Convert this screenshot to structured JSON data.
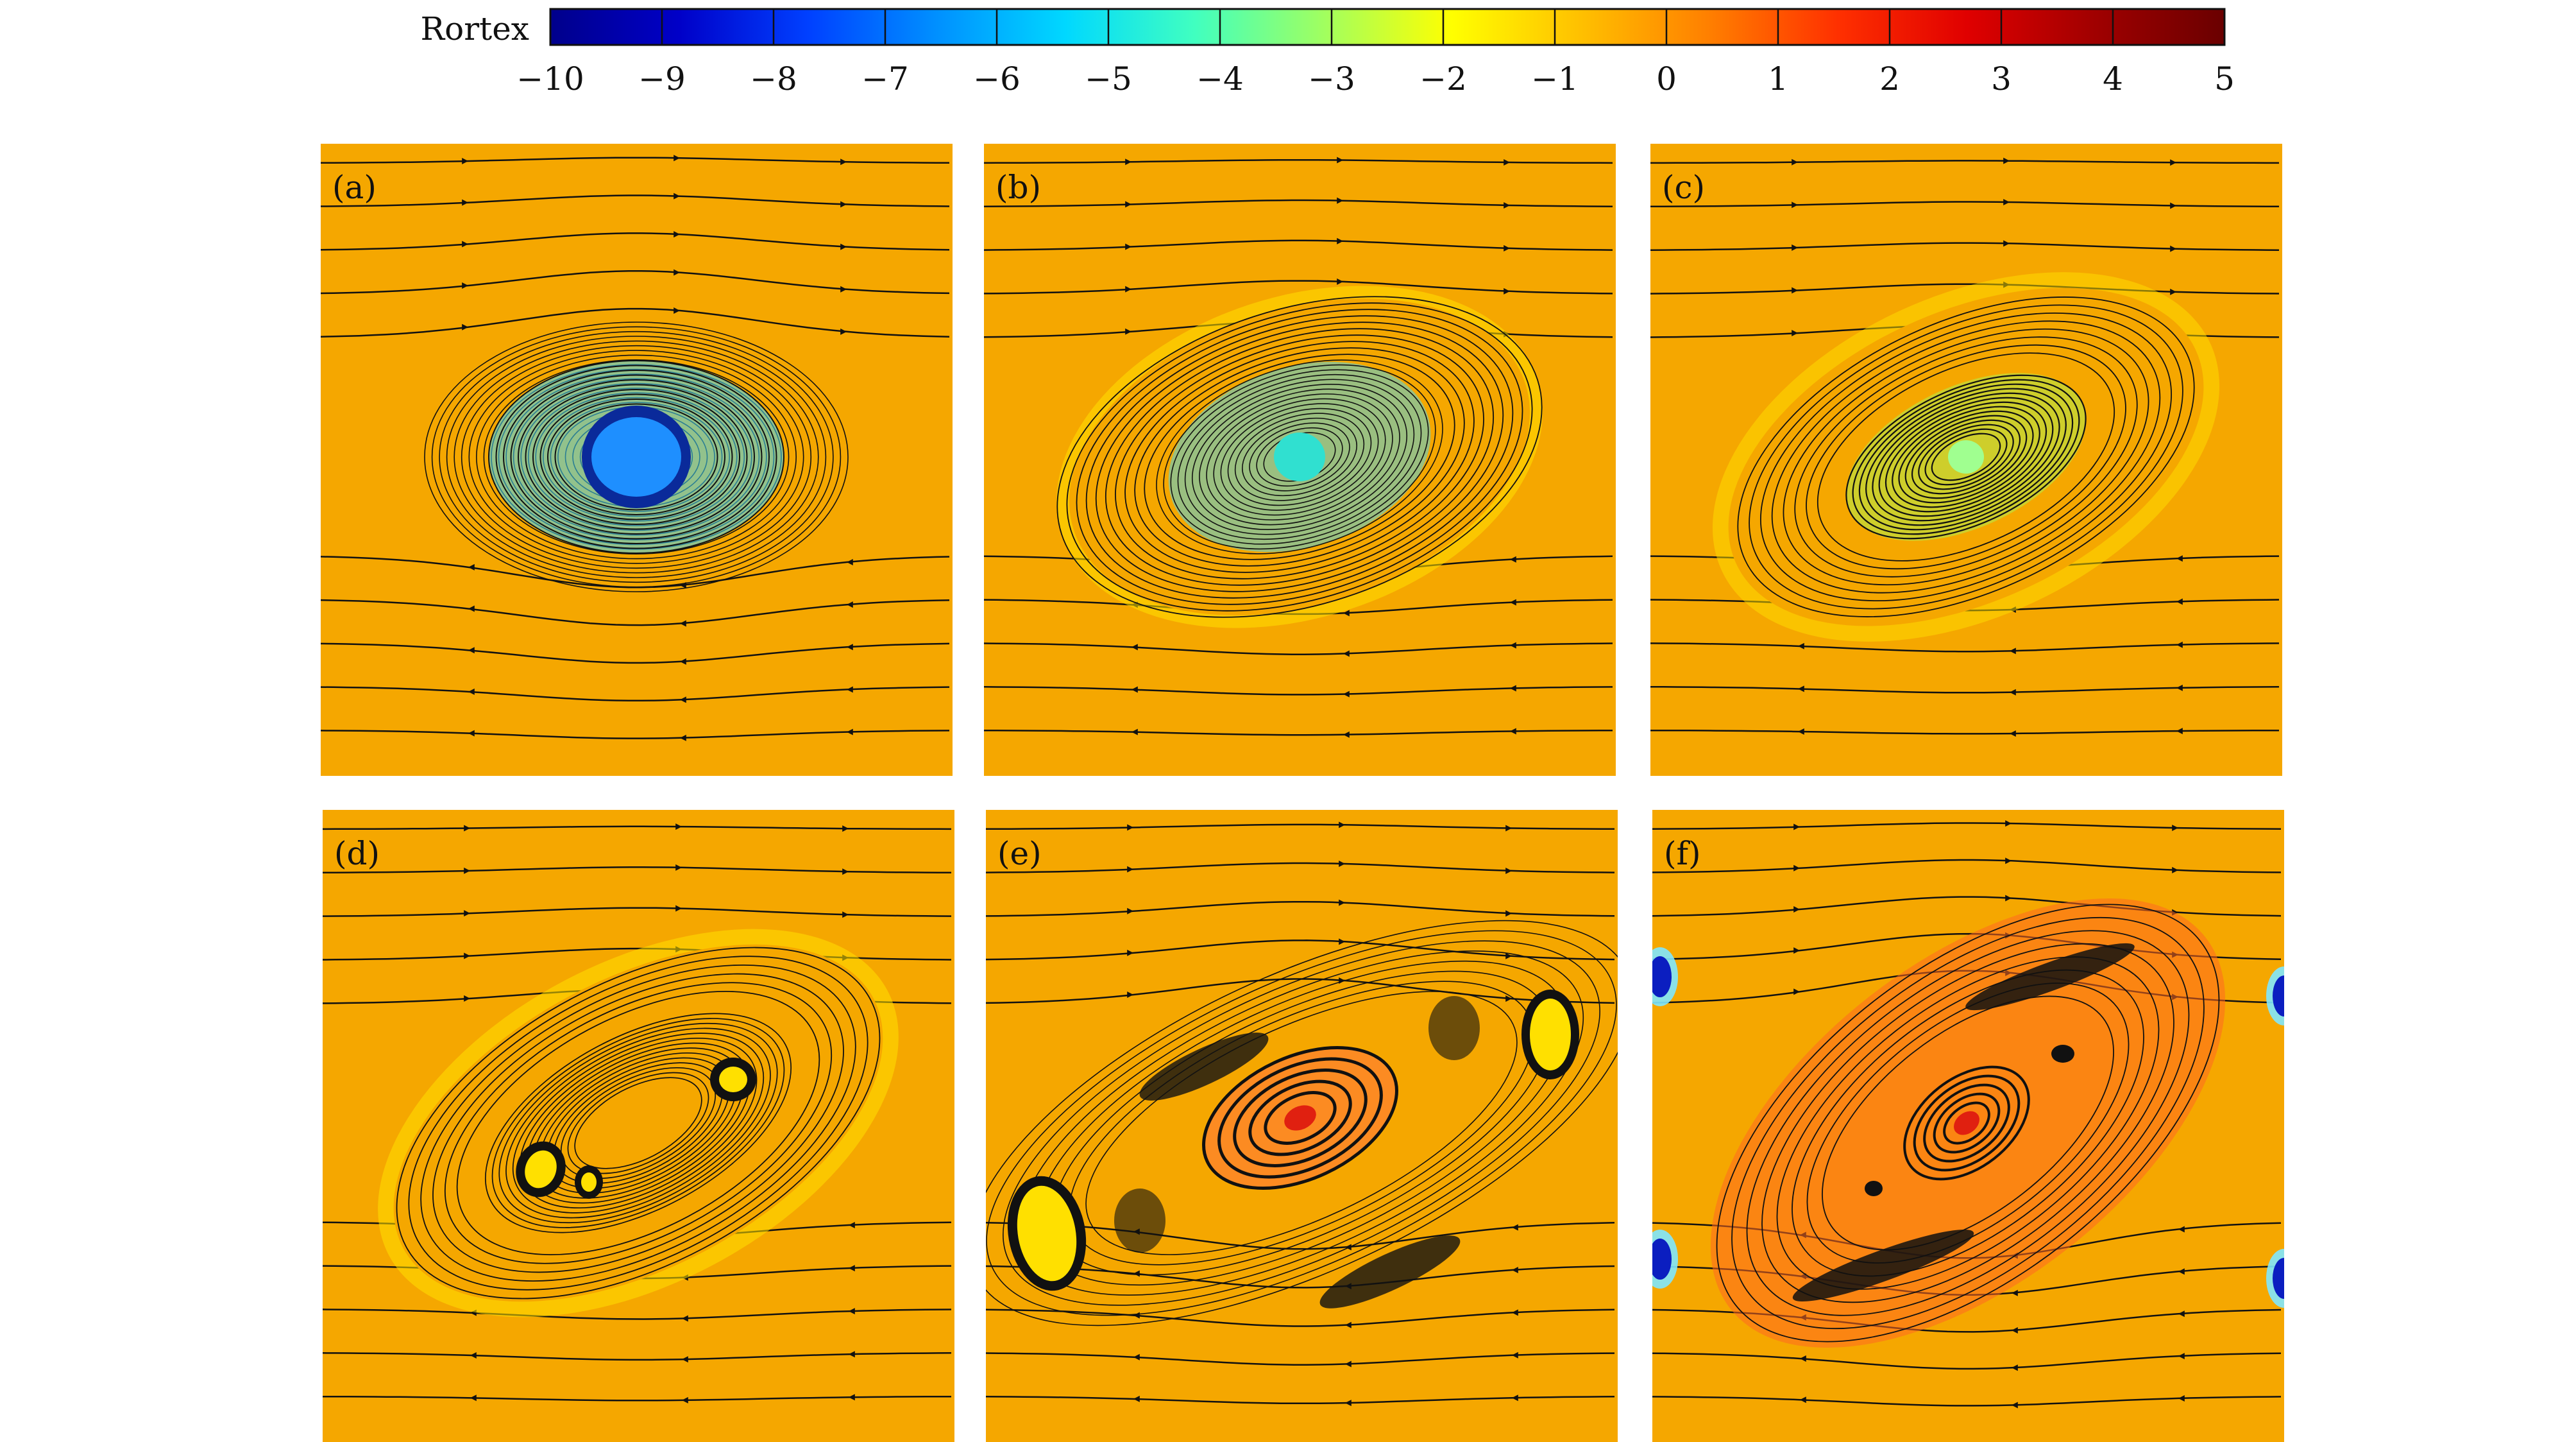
{
  "colorbar": {
    "label": "Rortex",
    "ticks": [
      "−10",
      "−9",
      "−8",
      "−7",
      "−6",
      "−5",
      "−4",
      "−3",
      "−2",
      "−1",
      "0",
      "1",
      "2",
      "3",
      "4",
      "5"
    ],
    "range": [
      -10,
      5
    ],
    "colors": [
      "#00008b",
      "#0000c8",
      "#0040ff",
      "#0090ff",
      "#00d8ff",
      "#40ffc0",
      "#a0ff60",
      "#ffff00",
      "#ffc000",
      "#ff7f00",
      "#ff3000",
      "#e00000",
      "#a00000",
      "#6a0000"
    ]
  },
  "panels": [
    {
      "label": "(a)"
    },
    {
      "label": "(b)"
    },
    {
      "label": "(c)"
    },
    {
      "label": "(d)"
    },
    {
      "label": "(e)"
    },
    {
      "label": "(f)"
    }
  ],
  "colors": {
    "background": "#f5a700",
    "streamline": "#111111",
    "negative_core": "#1e8fff",
    "positive_core": "#e02010",
    "yellow_band": "#ffe000"
  }
}
